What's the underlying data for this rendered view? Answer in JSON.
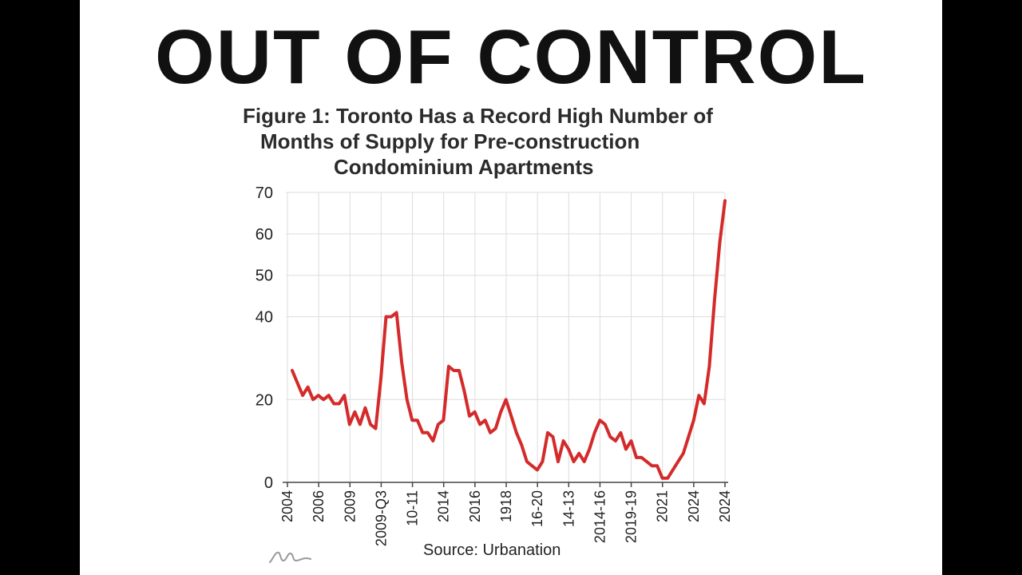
{
  "headline": "OUT OF CONTROL",
  "figure_title_lines": [
    "Figure 1: Toronto Has a Record High Number of",
    "Months of Supply for Pre-construction",
    "Condominium Apartments"
  ],
  "source": "Source: Urbanation",
  "colors": {
    "line": "#d42a2a",
    "grid": "#dddddd",
    "background": "#ffffff",
    "frame": "#000000"
  },
  "chart_data": {
    "type": "line",
    "title": "Figure 1: Toronto Has a Record High Number of Months of Supply for Pre-construction Condominium Apartments",
    "xlabel": "",
    "ylabel": "",
    "ylim": [
      0,
      70
    ],
    "y_ticks": [
      0,
      20,
      40,
      50,
      60,
      70
    ],
    "grid": true,
    "legend": "none",
    "x_tick_labels": [
      "2004",
      "2006",
      "2009",
      "2009-Q3",
      "10-11",
      "2014",
      "2016",
      "1918",
      "16-20",
      "14-13",
      "2014-16",
      "2019-19",
      "2021",
      "2024",
      "2024"
    ],
    "series": [
      {
        "values": [
          27,
          24,
          21,
          23,
          20,
          21,
          20,
          21,
          19,
          19,
          21,
          14,
          17,
          14,
          18,
          14,
          13,
          25,
          40,
          40,
          41,
          29,
          20,
          15,
          15,
          12,
          12,
          10,
          14,
          15,
          28,
          27,
          27,
          22,
          16,
          17,
          14,
          15,
          12,
          13,
          17,
          20,
          16,
          12,
          9,
          5,
          4,
          3,
          5,
          12,
          11,
          5,
          10,
          8,
          5,
          7,
          5,
          8,
          12,
          15,
          14,
          11,
          10,
          12,
          8,
          10,
          6,
          6,
          5,
          4,
          4,
          1,
          1,
          3,
          5,
          7,
          11,
          15,
          21,
          19,
          28,
          44,
          58,
          68
        ]
      }
    ]
  }
}
